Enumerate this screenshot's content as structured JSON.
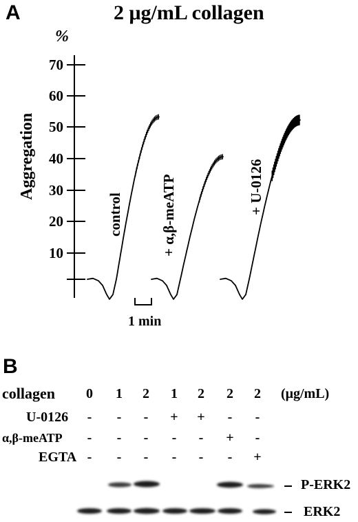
{
  "panel_a": {
    "letter": "A",
    "title": "2 μg/mL collagen",
    "y_unit": "%",
    "y_label": "Aggregation",
    "y_ticks": [
      "70",
      "60",
      "50",
      "40",
      "30",
      "20",
      "10"
    ],
    "scale_bar_label": "1 min",
    "trace_labels": [
      "control",
      "+ α,β-meATP",
      "+ U-0126"
    ],
    "chart_data": {
      "type": "line",
      "ylabel": "Aggregation",
      "yunit": "%",
      "ylim": [
        0,
        70
      ],
      "series": [
        {
          "name": "control",
          "final_aggregation": 53
        },
        {
          "name": "+ α,β-meATP",
          "final_aggregation": 40
        },
        {
          "name": "+ U-0126",
          "final_aggregation": 52
        }
      ]
    }
  },
  "panel_b": {
    "letter": "B",
    "rows": [
      {
        "label": "collagen",
        "values": [
          "0",
          "1",
          "2",
          "1",
          "2",
          "2",
          "2"
        ],
        "unit": "(μg/mL)"
      },
      {
        "label": "U-0126",
        "values": [
          "-",
          "-",
          "-",
          "+",
          "+",
          "-",
          "-"
        ]
      },
      {
        "label": "α,β-meATP",
        "values": [
          "-",
          "-",
          "-",
          "-",
          "-",
          "+",
          "-"
        ]
      },
      {
        "label": "EGTA",
        "values": [
          "-",
          "-",
          "-",
          "-",
          "-",
          "-",
          "+"
        ]
      }
    ],
    "band_labels": [
      "P-ERK2",
      "ERK2"
    ]
  },
  "colors": {
    "ink": "#000000",
    "band": "#1a1a1a",
    "background": "#ffffff"
  }
}
